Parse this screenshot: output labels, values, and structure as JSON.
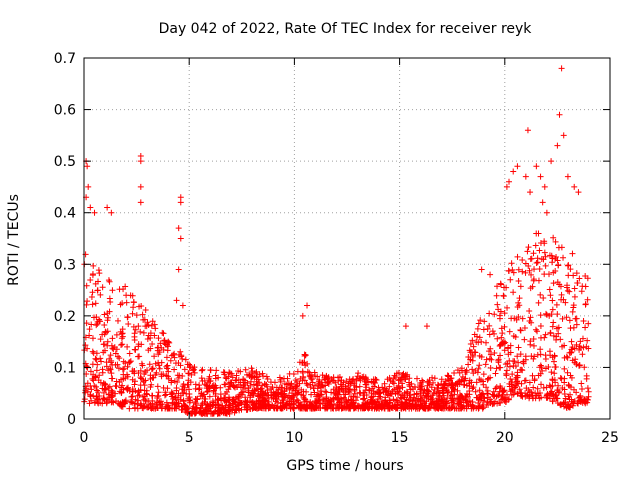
{
  "chart_data": {
    "type": "scatter",
    "title": "Day 042 of 2022, Rate Of TEC Index for receiver reyk",
    "xlabel": "GPS time / hours",
    "ylabel": "ROTI / TECUs",
    "xlim": [
      0,
      25
    ],
    "ylim": [
      0,
      0.7
    ],
    "xticks": [
      0,
      5,
      10,
      15,
      20,
      25
    ],
    "yticks": [
      0,
      0.1,
      0.2,
      0.3,
      0.4,
      0.5,
      0.6,
      0.7
    ],
    "grid": true,
    "marker": "+",
    "series_color": "#ff0000",
    "density_profile": [
      [
        0.0,
        0.03,
        0.34
      ],
      [
        0.5,
        0.03,
        0.3
      ],
      [
        1.0,
        0.03,
        0.28
      ],
      [
        1.5,
        0.03,
        0.27
      ],
      [
        2.0,
        0.02,
        0.26
      ],
      [
        2.5,
        0.02,
        0.24
      ],
      [
        3.0,
        0.02,
        0.21
      ],
      [
        3.5,
        0.02,
        0.18
      ],
      [
        4.0,
        0.02,
        0.16
      ],
      [
        4.5,
        0.02,
        0.14
      ],
      [
        5.0,
        0.01,
        0.11
      ],
      [
        6.0,
        0.01,
        0.1
      ],
      [
        7.0,
        0.01,
        0.09
      ],
      [
        8.0,
        0.02,
        0.1
      ],
      [
        9.0,
        0.02,
        0.08
      ],
      [
        10.0,
        0.02,
        0.09
      ],
      [
        10.5,
        0.02,
        0.14
      ],
      [
        11.0,
        0.02,
        0.09
      ],
      [
        12.0,
        0.02,
        0.08
      ],
      [
        13.0,
        0.02,
        0.09
      ],
      [
        14.0,
        0.02,
        0.08
      ],
      [
        15.0,
        0.02,
        0.09
      ],
      [
        16.0,
        0.02,
        0.08
      ],
      [
        17.0,
        0.02,
        0.08
      ],
      [
        18.0,
        0.02,
        0.1
      ],
      [
        18.5,
        0.02,
        0.17
      ],
      [
        19.0,
        0.02,
        0.22
      ],
      [
        19.5,
        0.03,
        0.25
      ],
      [
        20.0,
        0.03,
        0.28
      ],
      [
        20.5,
        0.05,
        0.33
      ],
      [
        21.0,
        0.04,
        0.34
      ],
      [
        21.5,
        0.04,
        0.38
      ],
      [
        22.0,
        0.04,
        0.35
      ],
      [
        22.5,
        0.03,
        0.36
      ],
      [
        23.0,
        0.02,
        0.34
      ],
      [
        23.5,
        0.03,
        0.3
      ],
      [
        24.0,
        0.03,
        0.28
      ]
    ],
    "outliers": [
      [
        0.1,
        0.5
      ],
      [
        0.15,
        0.49
      ],
      [
        0.2,
        0.45
      ],
      [
        0.1,
        0.43
      ],
      [
        0.3,
        0.41
      ],
      [
        0.5,
        0.4
      ],
      [
        1.1,
        0.41
      ],
      [
        1.3,
        0.4
      ],
      [
        2.7,
        0.51
      ],
      [
        2.7,
        0.5
      ],
      [
        2.7,
        0.45
      ],
      [
        2.7,
        0.42
      ],
      [
        4.6,
        0.43
      ],
      [
        4.6,
        0.42
      ],
      [
        4.5,
        0.37
      ],
      [
        4.6,
        0.35
      ],
      [
        4.5,
        0.29
      ],
      [
        4.4,
        0.23
      ],
      [
        4.7,
        0.22
      ],
      [
        10.6,
        0.22
      ],
      [
        10.4,
        0.2
      ],
      [
        15.3,
        0.18
      ],
      [
        16.3,
        0.18
      ],
      [
        18.9,
        0.29
      ],
      [
        19.3,
        0.28
      ],
      [
        20.2,
        0.46
      ],
      [
        20.4,
        0.48
      ],
      [
        20.6,
        0.49
      ],
      [
        20.1,
        0.45
      ],
      [
        21.0,
        0.47
      ],
      [
        21.2,
        0.44
      ],
      [
        21.5,
        0.49
      ],
      [
        21.7,
        0.47
      ],
      [
        21.9,
        0.45
      ],
      [
        21.1,
        0.56
      ],
      [
        22.2,
        0.5
      ],
      [
        22.5,
        0.53
      ],
      [
        22.6,
        0.59
      ],
      [
        22.8,
        0.55
      ],
      [
        22.7,
        0.68
      ],
      [
        23.3,
        0.45
      ],
      [
        23.0,
        0.47
      ],
      [
        23.5,
        0.44
      ],
      [
        21.8,
        0.42
      ],
      [
        22.0,
        0.4
      ]
    ]
  }
}
